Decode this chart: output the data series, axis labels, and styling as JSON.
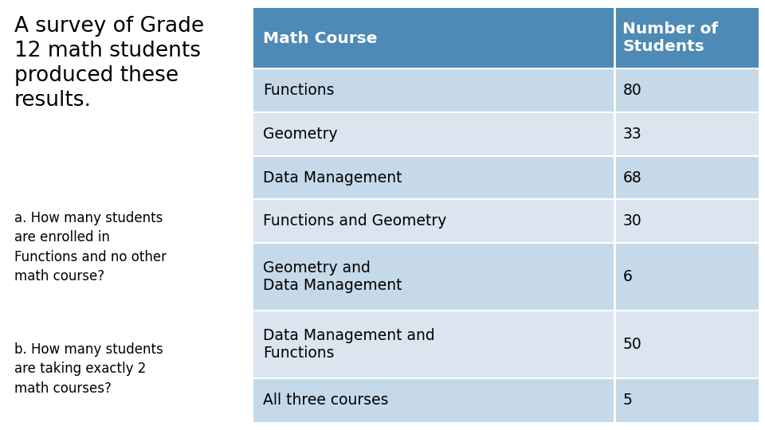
{
  "title_text": "A survey of Grade\n12 math students\nproduced these\nresults.",
  "subtitle_a": "a. How many students\nare enrolled in\nFunctions and no other\nmath course?",
  "subtitle_b": "b. How many students\nare taking exactly 2\nmath courses?",
  "header": [
    "Math Course",
    "Number of\nStudents"
  ],
  "rows": [
    [
      "Functions",
      "80"
    ],
    [
      "Geometry",
      "33"
    ],
    [
      "Data Management",
      "68"
    ],
    [
      "Functions and Geometry",
      "30"
    ],
    [
      "Geometry and\nData Management",
      "6"
    ],
    [
      "Data Management and\nFunctions",
      "50"
    ],
    [
      "All three courses",
      "5"
    ]
  ],
  "header_bg": "#4d8ab5",
  "row_odd_bg": "#c5d9e8",
  "row_even_bg": "#dae5f0",
  "header_text_color": "#ffffff",
  "row_text_color": "#000000",
  "left_text_color": "#000000",
  "background_color": "#ffffff",
  "fig_width": 9.6,
  "fig_height": 5.4,
  "dpi": 100
}
